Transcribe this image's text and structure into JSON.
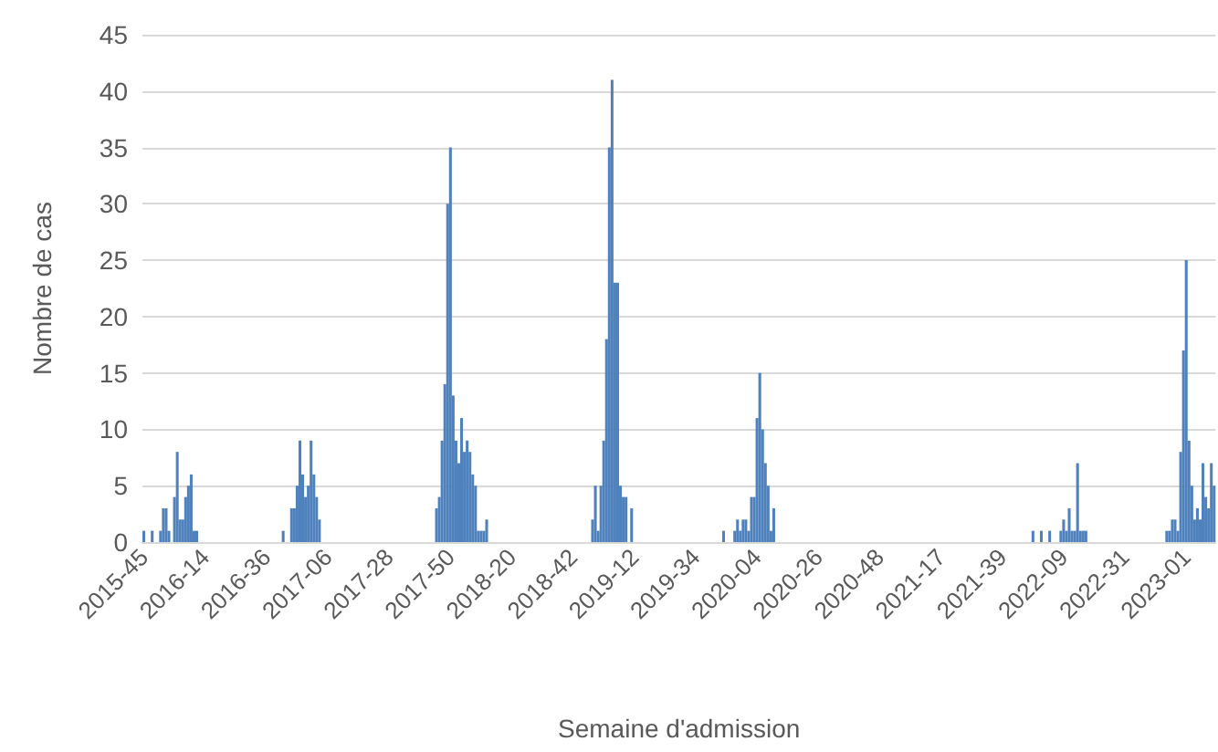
{
  "chart_data": {
    "type": "bar",
    "xlabel": "Semaine d'admission",
    "ylabel": "Nombre de cas",
    "color": "#4f81bd",
    "ylim": [
      0,
      45
    ],
    "yticks": [
      0,
      5,
      10,
      15,
      20,
      25,
      30,
      35,
      40,
      45
    ],
    "grid": "y",
    "categories": [
      "2015-45",
      null,
      null,
      null,
      null,
      null,
      null,
      null,
      null,
      null,
      null,
      null,
      null,
      null,
      null,
      null,
      null,
      null,
      null,
      null,
      null,
      null,
      "2016-14",
      null,
      null,
      null,
      null,
      null,
      null,
      null,
      null,
      null,
      null,
      null,
      null,
      null,
      null,
      null,
      null,
      null,
      null,
      null,
      null,
      null,
      "2016-36",
      null,
      null,
      null,
      null,
      null,
      null,
      null,
      null,
      null,
      null,
      null,
      null,
      null,
      null,
      null,
      null,
      null,
      null,
      null,
      null,
      null,
      "2017-06",
      null,
      null,
      null,
      null,
      null,
      null,
      null,
      null,
      null,
      null,
      null,
      null,
      null,
      null,
      null,
      null,
      null,
      null,
      null,
      null,
      null,
      "2017-28",
      null,
      null,
      null,
      null,
      null,
      null,
      null,
      null,
      null,
      null,
      null,
      null,
      null,
      null,
      null,
      null,
      null,
      null,
      null,
      null,
      null,
      "2017-50",
      null,
      null,
      null,
      null,
      null,
      null,
      null,
      null,
      null,
      null,
      null,
      null,
      null,
      null,
      null,
      null,
      null,
      null,
      null,
      null,
      null,
      "2018-20",
      null,
      null,
      null,
      null,
      null,
      null,
      null,
      null,
      null,
      null,
      null,
      null,
      null,
      null,
      null,
      null,
      null,
      null,
      null,
      null,
      null,
      "2018-42",
      null,
      null,
      null,
      null,
      null,
      null,
      null,
      null,
      null,
      null,
      null,
      null,
      null,
      null,
      null,
      null,
      null,
      null,
      null,
      null,
      null,
      "2019-12",
      null,
      null,
      null,
      null,
      null,
      null,
      null,
      null,
      null,
      null,
      null,
      null,
      null,
      null,
      null,
      null,
      null,
      null,
      null,
      null,
      null,
      "2019-34",
      null,
      null,
      null,
      null,
      null,
      null,
      null,
      null,
      null,
      null,
      null,
      null,
      null,
      null,
      null,
      null,
      null,
      null,
      null,
      null,
      null,
      "2020-04",
      null,
      null,
      null,
      null,
      null,
      null,
      null,
      null,
      null,
      null,
      null,
      null,
      null,
      null,
      null,
      null,
      null,
      null,
      null,
      null,
      null,
      "2020-26",
      null,
      null,
      null,
      null,
      null,
      null,
      null,
      null,
      null,
      null,
      null,
      null,
      null,
      null,
      null,
      null,
      null,
      null,
      null,
      null,
      null,
      "2020-48",
      null,
      null,
      null,
      null,
      null,
      null,
      null,
      null,
      null,
      null,
      null,
      null,
      null,
      null,
      null,
      null,
      null,
      null,
      null,
      null,
      null,
      "2021-17",
      null,
      null,
      null,
      null,
      null,
      null,
      null,
      null,
      null,
      null,
      null,
      null,
      null,
      null,
      null,
      null,
      null,
      null,
      null,
      null,
      null,
      "2021-39",
      null,
      null,
      null,
      null,
      null,
      null,
      null,
      null,
      null,
      null,
      null,
      null,
      null,
      null,
      null,
      null,
      null,
      null,
      null,
      null,
      null,
      "2022-09",
      null,
      null,
      null,
      null,
      null,
      null,
      null,
      null,
      null,
      null,
      null,
      null,
      null,
      null,
      null,
      null,
      null,
      null,
      null,
      null,
      null,
      "2022-31",
      null,
      null,
      null,
      null,
      null,
      null,
      null,
      null,
      null,
      null,
      null,
      null,
      null,
      null,
      null,
      null,
      null,
      null,
      null,
      null,
      null,
      "2023-01",
      null,
      null,
      null,
      null,
      null,
      null,
      null,
      null,
      null,
      null
    ],
    "values": [
      1,
      0,
      0,
      1,
      0,
      0,
      1,
      3,
      3,
      1,
      0,
      4,
      8,
      2,
      2,
      4,
      5,
      6,
      1,
      1,
      0,
      0,
      0,
      0,
      0,
      0,
      0,
      0,
      0,
      0,
      0,
      0,
      0,
      0,
      0,
      0,
      0,
      0,
      0,
      0,
      0,
      0,
      0,
      0,
      0,
      0,
      0,
      0,
      0,
      0,
      1,
      0,
      0,
      3,
      3,
      5,
      9,
      6,
      4,
      5,
      9,
      6,
      4,
      2,
      0,
      0,
      0,
      0,
      0,
      0,
      0,
      0,
      0,
      0,
      0,
      0,
      0,
      0,
      0,
      0,
      0,
      0,
      0,
      0,
      0,
      0,
      0,
      0,
      0,
      0,
      0,
      0,
      0,
      0,
      0,
      0,
      0,
      0,
      0,
      0,
      0,
      0,
      0,
      0,
      0,
      3,
      4,
      9,
      14,
      30,
      35,
      13,
      9,
      7,
      11,
      8,
      9,
      8,
      6,
      5,
      1,
      1,
      1,
      2,
      0,
      0,
      0,
      0,
      0,
      0,
      0,
      0,
      0,
      0,
      0,
      0,
      0,
      0,
      0,
      0,
      0,
      0,
      0,
      0,
      0,
      0,
      0,
      0,
      0,
      0,
      0,
      0,
      0,
      0,
      0,
      0,
      0,
      0,
      0,
      0,
      0,
      2,
      5,
      1,
      5,
      9,
      18,
      35,
      41,
      23,
      23,
      5,
      4,
      4,
      0,
      3,
      0,
      0,
      0,
      0,
      0,
      0,
      0,
      0,
      0,
      0,
      0,
      0,
      0,
      0,
      0,
      0,
      0,
      0,
      0,
      0,
      0,
      0,
      0,
      0,
      0,
      0,
      0,
      0,
      0,
      0,
      0,
      0,
      1,
      0,
      0,
      0,
      1,
      2,
      1,
      2,
      2,
      1,
      4,
      4,
      11,
      15,
      10,
      7,
      5,
      1,
      3,
      0,
      0,
      0,
      0,
      0,
      0,
      0,
      0,
      0,
      0,
      0,
      0,
      0,
      0,
      0,
      0,
      0,
      0,
      0,
      0,
      0,
      0,
      0,
      0,
      0,
      0,
      0,
      0,
      0,
      0,
      0,
      0,
      0,
      0,
      0,
      0,
      0,
      0,
      0,
      0,
      0,
      0,
      0,
      0,
      0,
      0,
      0,
      0,
      0,
      0,
      0,
      0,
      0,
      0,
      0,
      0,
      0,
      0,
      0,
      0,
      0,
      0,
      0,
      0,
      0,
      0,
      0,
      0,
      0,
      0,
      0,
      0,
      0,
      0,
      0,
      0,
      0,
      0,
      0,
      0,
      0,
      0,
      0,
      0,
      0,
      0,
      0,
      0,
      0,
      0,
      0,
      0,
      1,
      0,
      0,
      1,
      0,
      0,
      1,
      0,
      0,
      0,
      1,
      2,
      1,
      3,
      1,
      1,
      7,
      1,
      1,
      1,
      0,
      0,
      0,
      0,
      0,
      0,
      0,
      0,
      0,
      0,
      0,
      0,
      0,
      0,
      0,
      0,
      0,
      0,
      0,
      0,
      0,
      0,
      0,
      0,
      0,
      0,
      0,
      0,
      1,
      1,
      2,
      2,
      1,
      8,
      17,
      25,
      9,
      5,
      2,
      3,
      2,
      7,
      4,
      3,
      7,
      5
    ]
  }
}
